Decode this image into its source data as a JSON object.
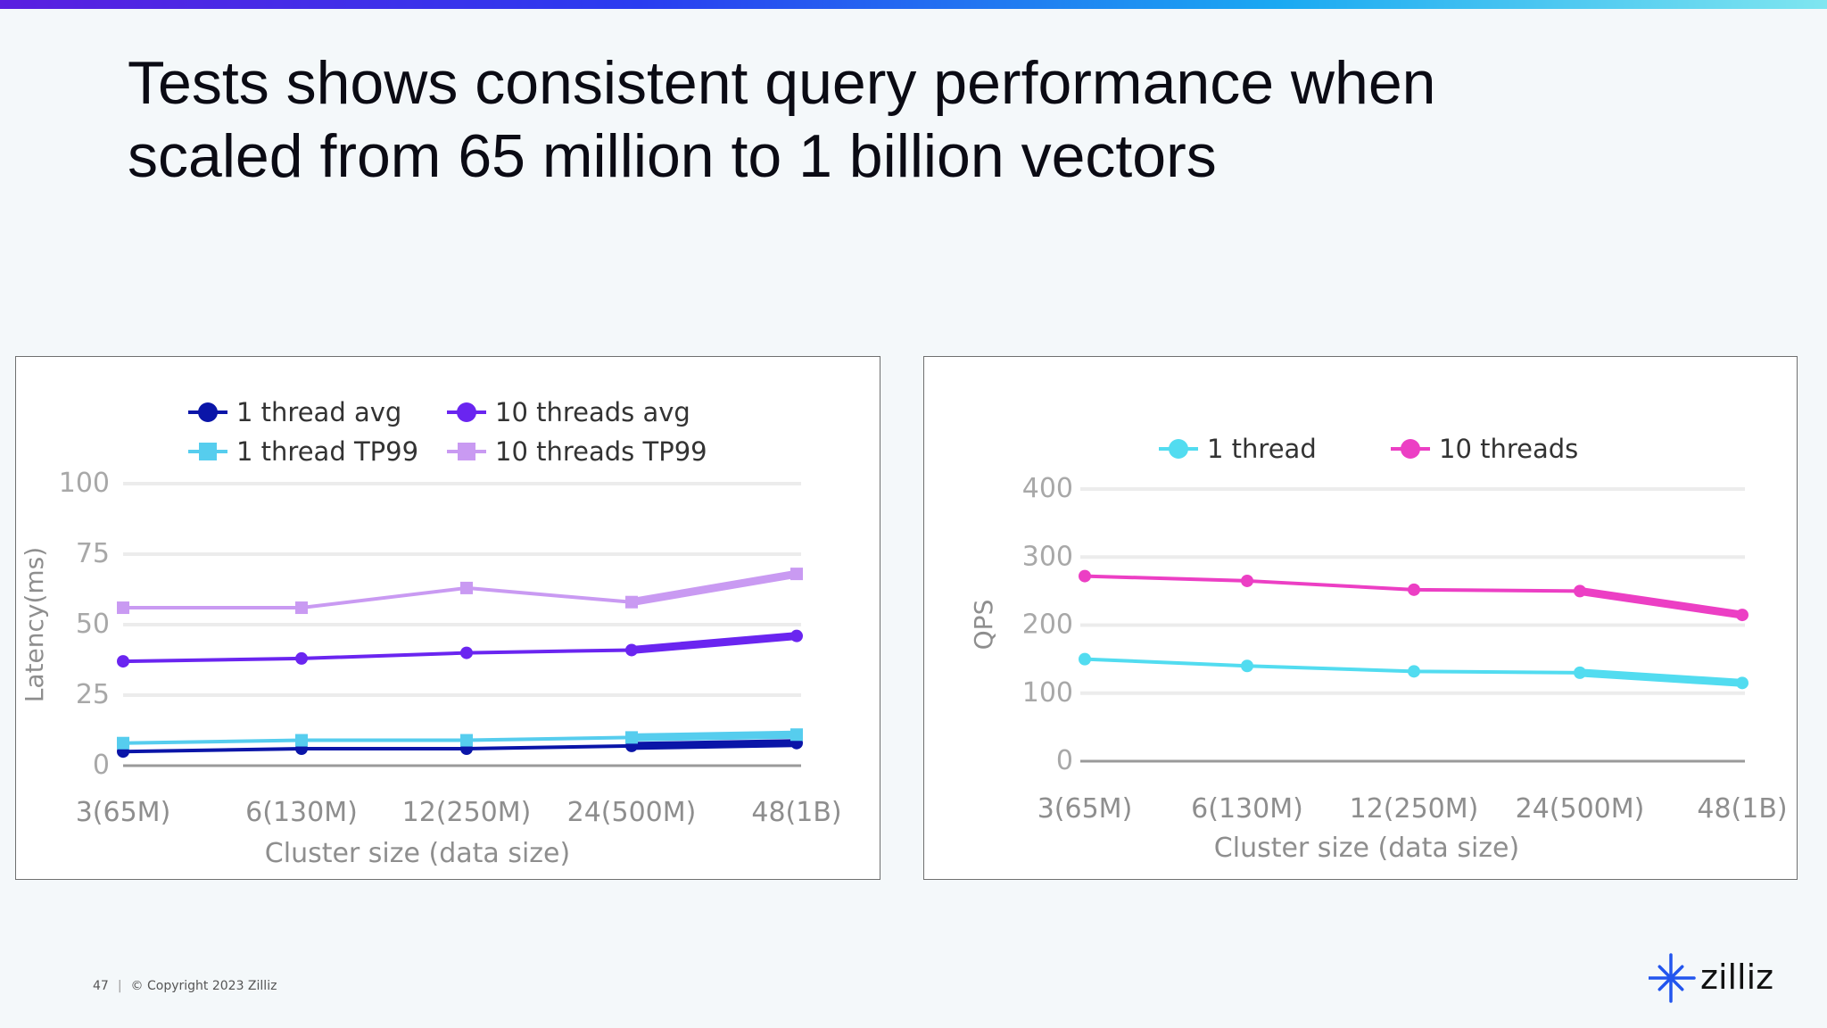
{
  "slide": {
    "title_line1": "Tests shows consistent query performance when",
    "title_line2": "scaled from 65 million to 1 billion vectors",
    "page_number": "47",
    "copyright": "© Copyright  2023  Zilliz",
    "brand": "zilliz",
    "brand_color": "#2255ee"
  },
  "chart_data": [
    {
      "type": "line",
      "ylabel": "Latency(ms)",
      "xlabel": "Cluster size  (data size)",
      "categories": [
        "3(65M)",
        "6(130M)",
        "12(250M)",
        "24(500M)",
        "48(1B)"
      ],
      "ylim": [
        0,
        100
      ],
      "yticks": [
        0,
        25,
        50,
        75,
        100
      ],
      "grid": true,
      "legend": "top",
      "series": [
        {
          "name": "1 thread avg",
          "values": [
            5,
            6,
            6,
            7,
            8
          ],
          "color": "#0a15a8",
          "marker": "circle"
        },
        {
          "name": "1 thread TP99",
          "values": [
            8,
            9,
            9,
            10,
            11
          ],
          "color": "#56cdee",
          "marker": "square"
        },
        {
          "name": "10 threads avg",
          "values": [
            37,
            38,
            40,
            41,
            46
          ],
          "color": "#6a25f0",
          "marker": "circle"
        },
        {
          "name": "10 threads TP99",
          "values": [
            56,
            56,
            63,
            58,
            68
          ],
          "color": "#c99af2",
          "marker": "square"
        }
      ]
    },
    {
      "type": "line",
      "ylabel": "QPS",
      "xlabel": "Cluster size  (data size)",
      "categories": [
        "3(65M)",
        "6(130M)",
        "12(250M)",
        "24(500M)",
        "48(1B)"
      ],
      "ylim": [
        0,
        400
      ],
      "yticks": [
        0,
        100,
        200,
        300,
        400
      ],
      "grid": true,
      "legend": "top",
      "series": [
        {
          "name": "1 thread",
          "values": [
            150,
            140,
            132,
            130,
            115
          ],
          "color": "#52dcf0",
          "marker": "circle"
        },
        {
          "name": "10 threads",
          "values": [
            272,
            265,
            252,
            250,
            215
          ],
          "color": "#ec3fc4",
          "marker": "circle"
        }
      ]
    }
  ]
}
